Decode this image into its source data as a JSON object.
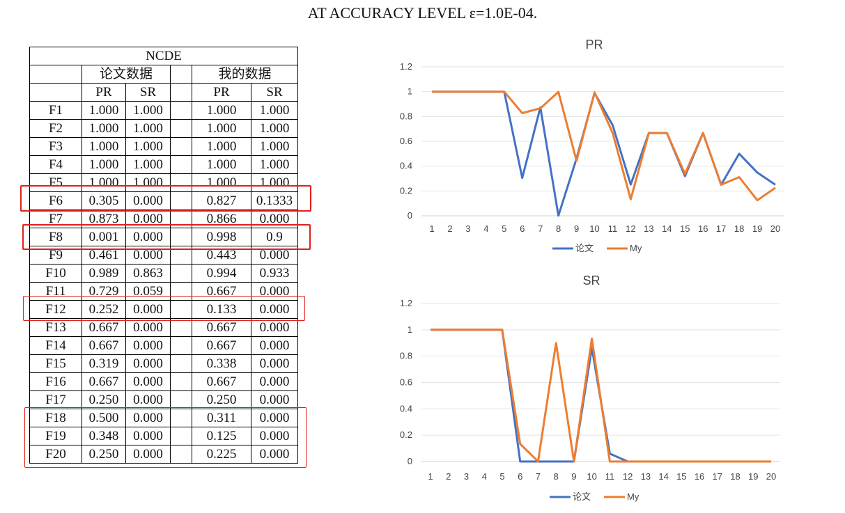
{
  "page": {
    "title": "AT ACCURACY LEVEL ε=1.0E-04."
  },
  "table": {
    "title": "NCDE",
    "group_headers": [
      "论文数据",
      "我的数据"
    ],
    "sub_headers": [
      "PR",
      "SR",
      "PR",
      "SR"
    ],
    "rows": [
      [
        "F1",
        "1.000",
        "1.000",
        "1.000",
        "1.000"
      ],
      [
        "F2",
        "1.000",
        "1.000",
        "1.000",
        "1.000"
      ],
      [
        "F3",
        "1.000",
        "1.000",
        "1.000",
        "1.000"
      ],
      [
        "F4",
        "1.000",
        "1.000",
        "1.000",
        "1.000"
      ],
      [
        "F5",
        "1.000",
        "1.000",
        "1.000",
        "1.000"
      ],
      [
        "F6",
        "0.305",
        "0.000",
        "0.827",
        "0.1333"
      ],
      [
        "F7",
        "0.873",
        "0.000",
        "0.866",
        "0.000"
      ],
      [
        "F8",
        "0.001",
        "0.000",
        "0.998",
        "0.9"
      ],
      [
        "F9",
        "0.461",
        "0.000",
        "0.443",
        "0.000"
      ],
      [
        "F10",
        "0.989",
        "0.863",
        "0.994",
        "0.933"
      ],
      [
        "F11",
        "0.729",
        "0.059",
        "0.667",
        "0.000"
      ],
      [
        "F12",
        "0.252",
        "0.000",
        "0.133",
        "0.000"
      ],
      [
        "F13",
        "0.667",
        "0.000",
        "0.667",
        "0.000"
      ],
      [
        "F14",
        "0.667",
        "0.000",
        "0.667",
        "0.000"
      ],
      [
        "F15",
        "0.319",
        "0.000",
        "0.338",
        "0.000"
      ],
      [
        "F16",
        "0.667",
        "0.000",
        "0.667",
        "0.000"
      ],
      [
        "F17",
        "0.250",
        "0.000",
        "0.250",
        "0.000"
      ],
      [
        "F18",
        "0.500",
        "0.000",
        "0.311",
        "0.000"
      ],
      [
        "F19",
        "0.348",
        "0.000",
        "0.125",
        "0.000"
      ],
      [
        "F20",
        "0.250",
        "0.000",
        "0.225",
        "0.000"
      ]
    ],
    "highlight_color": "#e0201a"
  },
  "chart_data": [
    {
      "type": "line",
      "title": "PR",
      "x": [
        1,
        2,
        3,
        4,
        5,
        6,
        7,
        8,
        9,
        10,
        11,
        12,
        13,
        14,
        15,
        16,
        17,
        18,
        19,
        20
      ],
      "ylim": [
        0,
        1.2
      ],
      "yticks": [
        "0",
        "0.2",
        "0.4",
        "0.6",
        "0.8",
        "1",
        "1.2"
      ],
      "grid": true,
      "legend_position": "bottom",
      "series": [
        {
          "name": "论文",
          "color": "#4472c4",
          "values": [
            1,
            1,
            1,
            1,
            1,
            0.305,
            0.873,
            0.001,
            0.461,
            0.989,
            0.729,
            0.252,
            0.667,
            0.667,
            0.319,
            0.667,
            0.25,
            0.5,
            0.348,
            0.25
          ]
        },
        {
          "name": "My",
          "color": "#ed7d31",
          "values": [
            1,
            1,
            1,
            1,
            1,
            0.827,
            0.866,
            0.998,
            0.443,
            0.994,
            0.667,
            0.133,
            0.667,
            0.667,
            0.338,
            0.667,
            0.25,
            0.311,
            0.125,
            0.225
          ]
        }
      ]
    },
    {
      "type": "line",
      "title": "SR",
      "x": [
        1,
        2,
        3,
        4,
        5,
        6,
        7,
        8,
        9,
        10,
        11,
        12,
        13,
        14,
        15,
        16,
        17,
        18,
        19,
        20
      ],
      "ylim": [
        0,
        1.2
      ],
      "yticks": [
        "0",
        "0.2",
        "0.4",
        "0.6",
        "0.8",
        "1",
        "1.2"
      ],
      "grid": true,
      "legend_position": "bottom",
      "series": [
        {
          "name": "论文",
          "color": "#4472c4",
          "values": [
            1,
            1,
            1,
            1,
            1,
            0,
            0,
            0,
            0,
            0.863,
            0.059,
            0,
            0,
            0,
            0,
            0,
            0,
            0,
            0,
            0
          ]
        },
        {
          "name": "My",
          "color": "#ed7d31",
          "values": [
            1,
            1,
            1,
            1,
            1,
            0.1333,
            0,
            0.9,
            0,
            0.933,
            0,
            0,
            0,
            0,
            0,
            0,
            0,
            0,
            0,
            0
          ]
        }
      ]
    }
  ]
}
